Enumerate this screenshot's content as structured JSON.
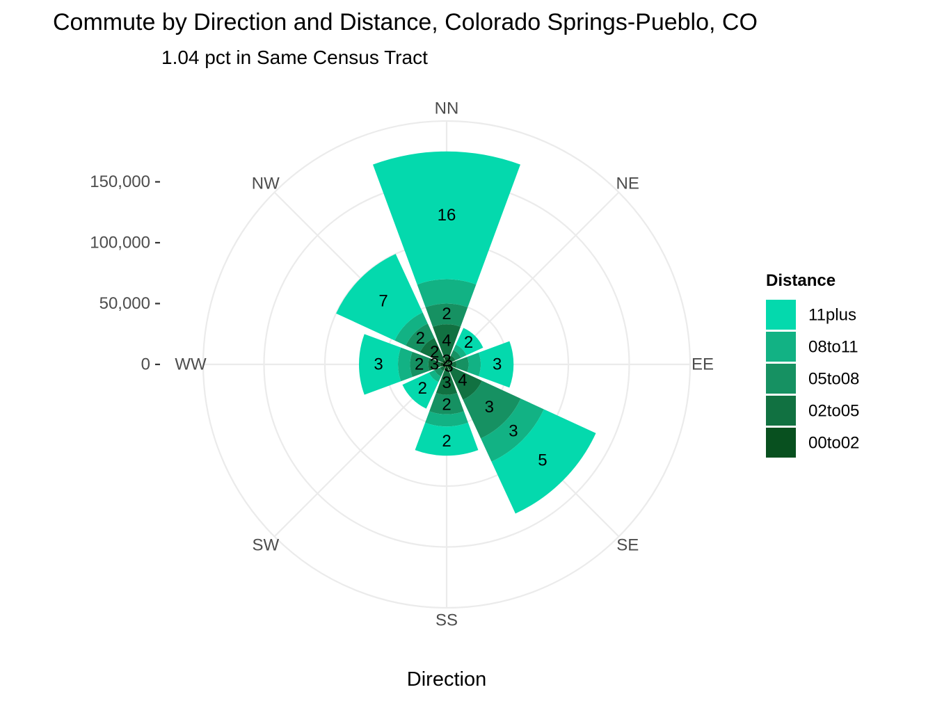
{
  "chart_data": {
    "type": "bar",
    "coord": "polar",
    "title": "Commute by Direction and Distance, Colorado Springs-Pueblo, CO",
    "subtitle": "1.04 pct in Same Census Tract",
    "xlabel": "Direction",
    "ylabel": "",
    "categories": [
      "NN",
      "NE",
      "EE",
      "SE",
      "SS",
      "SW",
      "WW",
      "NW"
    ],
    "y_ticks": [
      0,
      50000,
      100000,
      150000
    ],
    "y_tick_labels": [
      "0",
      "50,000",
      "100,000",
      "150,000"
    ],
    "ylim": [
      0,
      200000
    ],
    "grid": true,
    "legend": {
      "title": "Distance",
      "position": "right"
    },
    "series": [
      {
        "name": "00to02",
        "color": "#08501f",
        "values": [
          6000,
          4000,
          4000,
          5000,
          5000,
          3000,
          5000,
          4000
        ],
        "labels": [
          "2",
          "",
          "",
          "3",
          "",
          "",
          "",
          ""
        ]
      },
      {
        "name": "02to05",
        "color": "#117141",
        "values": [
          27000,
          4000,
          4000,
          27000,
          20000,
          3000,
          10000,
          20000
        ],
        "labels": [
          "4",
          "",
          "",
          "4",
          "3",
          "",
          "3",
          "2"
        ]
      },
      {
        "name": "05to08",
        "color": "#169162",
        "values": [
          17000,
          5000,
          10000,
          35000,
          16000,
          5000,
          15000,
          13000
        ],
        "labels": [
          "2",
          "",
          "",
          "3",
          "2",
          "",
          "2",
          "2"
        ]
      },
      {
        "name": "08to11",
        "color": "#12b284",
        "values": [
          20000,
          5000,
          10000,
          21000,
          10000,
          5000,
          10000,
          10000
        ],
        "labels": [
          "",
          "",
          "",
          "3",
          "",
          "",
          "",
          ""
        ]
      },
      {
        "name": "11plus",
        "color": "#04d9ad",
        "values": [
          105000,
          15000,
          27000,
          47000,
          24000,
          24000,
          32000,
          53000
        ],
        "labels": [
          "16",
          "2",
          "3",
          "5",
          "2",
          "2",
          "3",
          "7"
        ]
      }
    ],
    "legend_order": [
      "11plus",
      "08to11",
      "05to08",
      "02to05",
      "00to02"
    ]
  }
}
